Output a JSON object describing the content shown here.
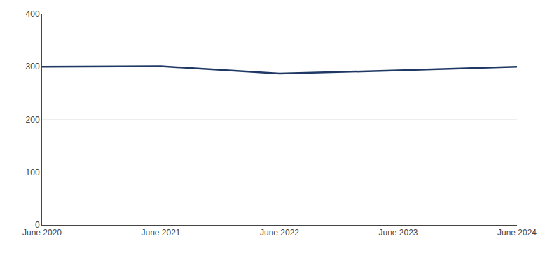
{
  "chart_data": {
    "type": "line",
    "categories": [
      "June 2020",
      "June 2021",
      "June 2022",
      "June 2023",
      "June 2024"
    ],
    "values": [
      300,
      301,
      287,
      293,
      300
    ],
    "color": "#1f3864",
    "ylim": [
      0,
      400
    ],
    "yticks": [
      0,
      100,
      200,
      300,
      400
    ],
    "grid": true
  }
}
